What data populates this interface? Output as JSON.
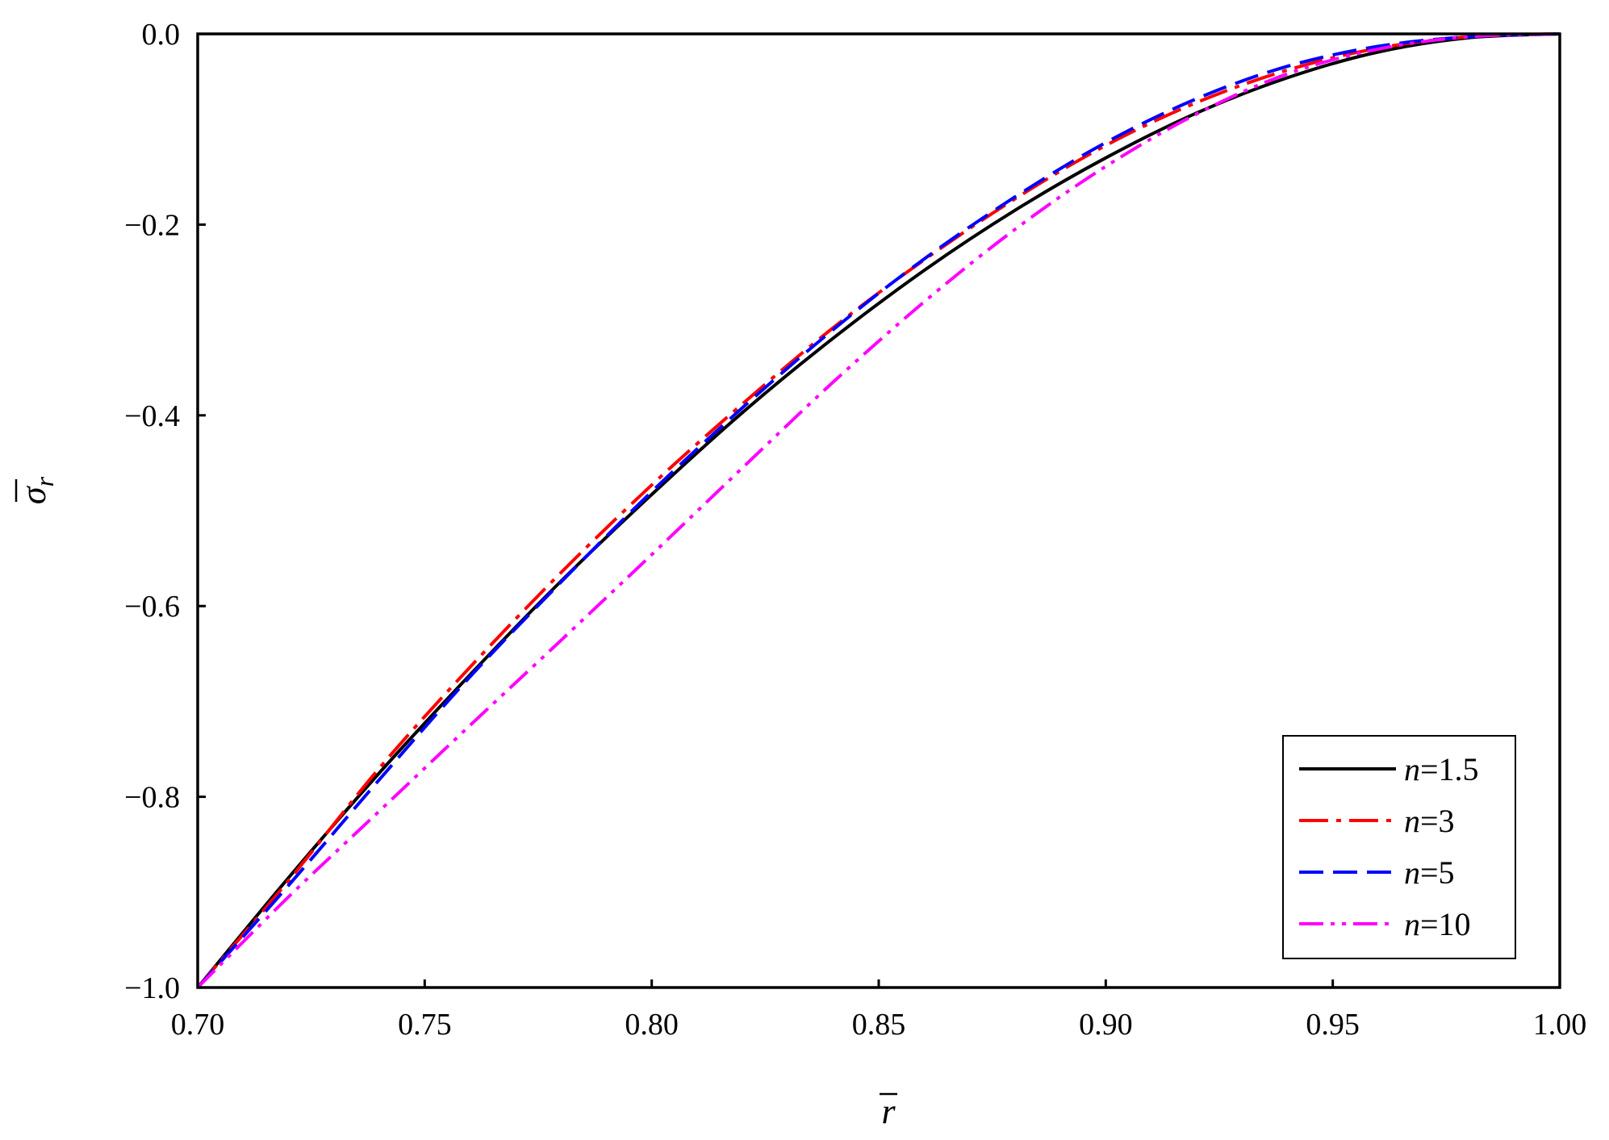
{
  "chart_data": {
    "type": "line",
    "xlabel": "r",
    "ylabel": "σ",
    "ylabel_subscript": "r",
    "xlim": [
      0.7,
      1.0
    ],
    "ylim": [
      -1.0,
      0.0
    ],
    "xticks": [
      "0.70",
      "0.75",
      "0.80",
      "0.85",
      "0.90",
      "0.95",
      "1.00"
    ],
    "yticks": [
      "0.0",
      "−0.2",
      "−0.4",
      "−0.6",
      "−0.8",
      "−1.0"
    ],
    "xtick_values": [
      0.7,
      0.75,
      0.8,
      0.85,
      0.9,
      0.95,
      1.0
    ],
    "ytick_values": [
      0.0,
      -0.2,
      -0.4,
      -0.6,
      -0.8,
      -1.0
    ],
    "grid": false,
    "legend_position": "bottom-right",
    "series": [
      {
        "name": "n=1.5",
        "name_var": "n",
        "name_rest": "=1.5",
        "color": "#000000",
        "dash": "solid",
        "x": [
          0.7,
          0.72,
          0.74,
          0.76,
          0.78,
          0.8,
          0.82,
          0.84,
          0.86,
          0.88,
          0.9,
          0.92,
          0.94,
          0.96,
          0.98,
          1.0
        ],
        "y": [
          -1.0,
          -0.885,
          -0.775,
          -0.672,
          -0.574,
          -0.483,
          -0.397,
          -0.319,
          -0.248,
          -0.185,
          -0.13,
          -0.083,
          -0.046,
          -0.019,
          -0.004,
          0.0
        ]
      },
      {
        "name": "n=3",
        "name_var": "n",
        "name_rest": "=3",
        "color": "#ff0000",
        "dash": "dashdot",
        "x": [
          0.7,
          0.72,
          0.74,
          0.76,
          0.78,
          0.8,
          0.82,
          0.84,
          0.86,
          0.88,
          0.9,
          0.92,
          0.94,
          0.96,
          0.98,
          1.0
        ],
        "y": [
          -1.0,
          -0.888,
          -0.77,
          -0.664,
          -0.565,
          -0.473,
          -0.388,
          -0.308,
          -0.237,
          -0.173,
          -0.117,
          -0.072,
          -0.038,
          -0.015,
          -0.003,
          0.0
        ]
      },
      {
        "name": "n=5",
        "name_var": "n",
        "name_rest": "=5",
        "color": "#0000ff",
        "dash": "dashed",
        "x": [
          0.7,
          0.72,
          0.74,
          0.76,
          0.78,
          0.8,
          0.82,
          0.84,
          0.86,
          0.88,
          0.9,
          0.92,
          0.94,
          0.96,
          0.98,
          1.0
        ],
        "y": [
          -1.0,
          -0.893,
          -0.782,
          -0.674,
          -0.575,
          -0.48,
          -0.392,
          -0.31,
          -0.236,
          -0.171,
          -0.114,
          -0.068,
          -0.034,
          -0.013,
          -0.003,
          0.0
        ]
      },
      {
        "name": "n=10",
        "name_var": "n",
        "name_rest": "=10",
        "color": "#ff00ff",
        "dash": "dashdotdot",
        "x": [
          0.7,
          0.72,
          0.74,
          0.76,
          0.78,
          0.8,
          0.82,
          0.84,
          0.86,
          0.88,
          0.9,
          0.92,
          0.94,
          0.96,
          0.98,
          1.0
        ],
        "y": [
          -1.0,
          -0.905,
          -0.815,
          -0.725,
          -0.636,
          -0.546,
          -0.455,
          -0.365,
          -0.281,
          -0.205,
          -0.139,
          -0.084,
          -0.042,
          -0.016,
          -0.003,
          0.0
        ]
      }
    ]
  }
}
